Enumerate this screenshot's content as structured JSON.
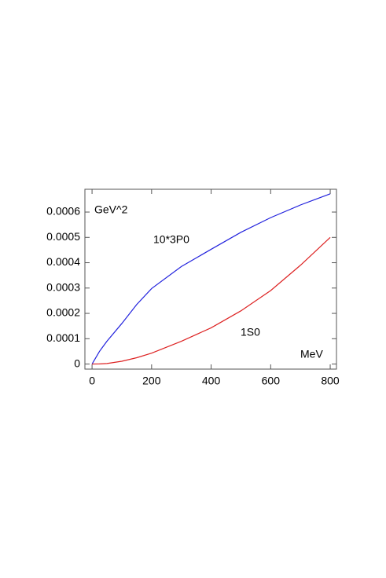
{
  "chart_data": {
    "type": "line",
    "annotations": [
      "GeV^2",
      "10*3P0",
      "1S0",
      "MeV"
    ],
    "x": [
      0,
      25,
      50,
      100,
      150,
      200,
      300,
      400,
      500,
      600,
      700,
      800
    ],
    "series": [
      {
        "name": "10*3P0",
        "color": "#2222dd",
        "values": [
          0,
          5e-05,
          9e-05,
          0.00016,
          0.000235,
          0.000298,
          0.000385,
          0.000453,
          0.00052,
          0.000578,
          0.000628,
          0.000672
        ]
      },
      {
        "name": "1S0",
        "color": "#dd2222",
        "values": [
          0,
          5e-07,
          2e-06,
          1.1e-05,
          2.5e-05,
          4.3e-05,
          9e-05,
          0.000143,
          0.00021,
          0.00029,
          0.00039,
          0.0005
        ]
      }
    ],
    "xlim": [
      -24,
      821
    ],
    "ylim": [
      -2e-05,
      0.00069
    ],
    "xticks": [
      0,
      200,
      400,
      600,
      800
    ],
    "yticks": [
      0,
      0.0001,
      0.0002,
      0.0003,
      0.0004,
      0.0005,
      0.0006
    ],
    "grid": false
  }
}
